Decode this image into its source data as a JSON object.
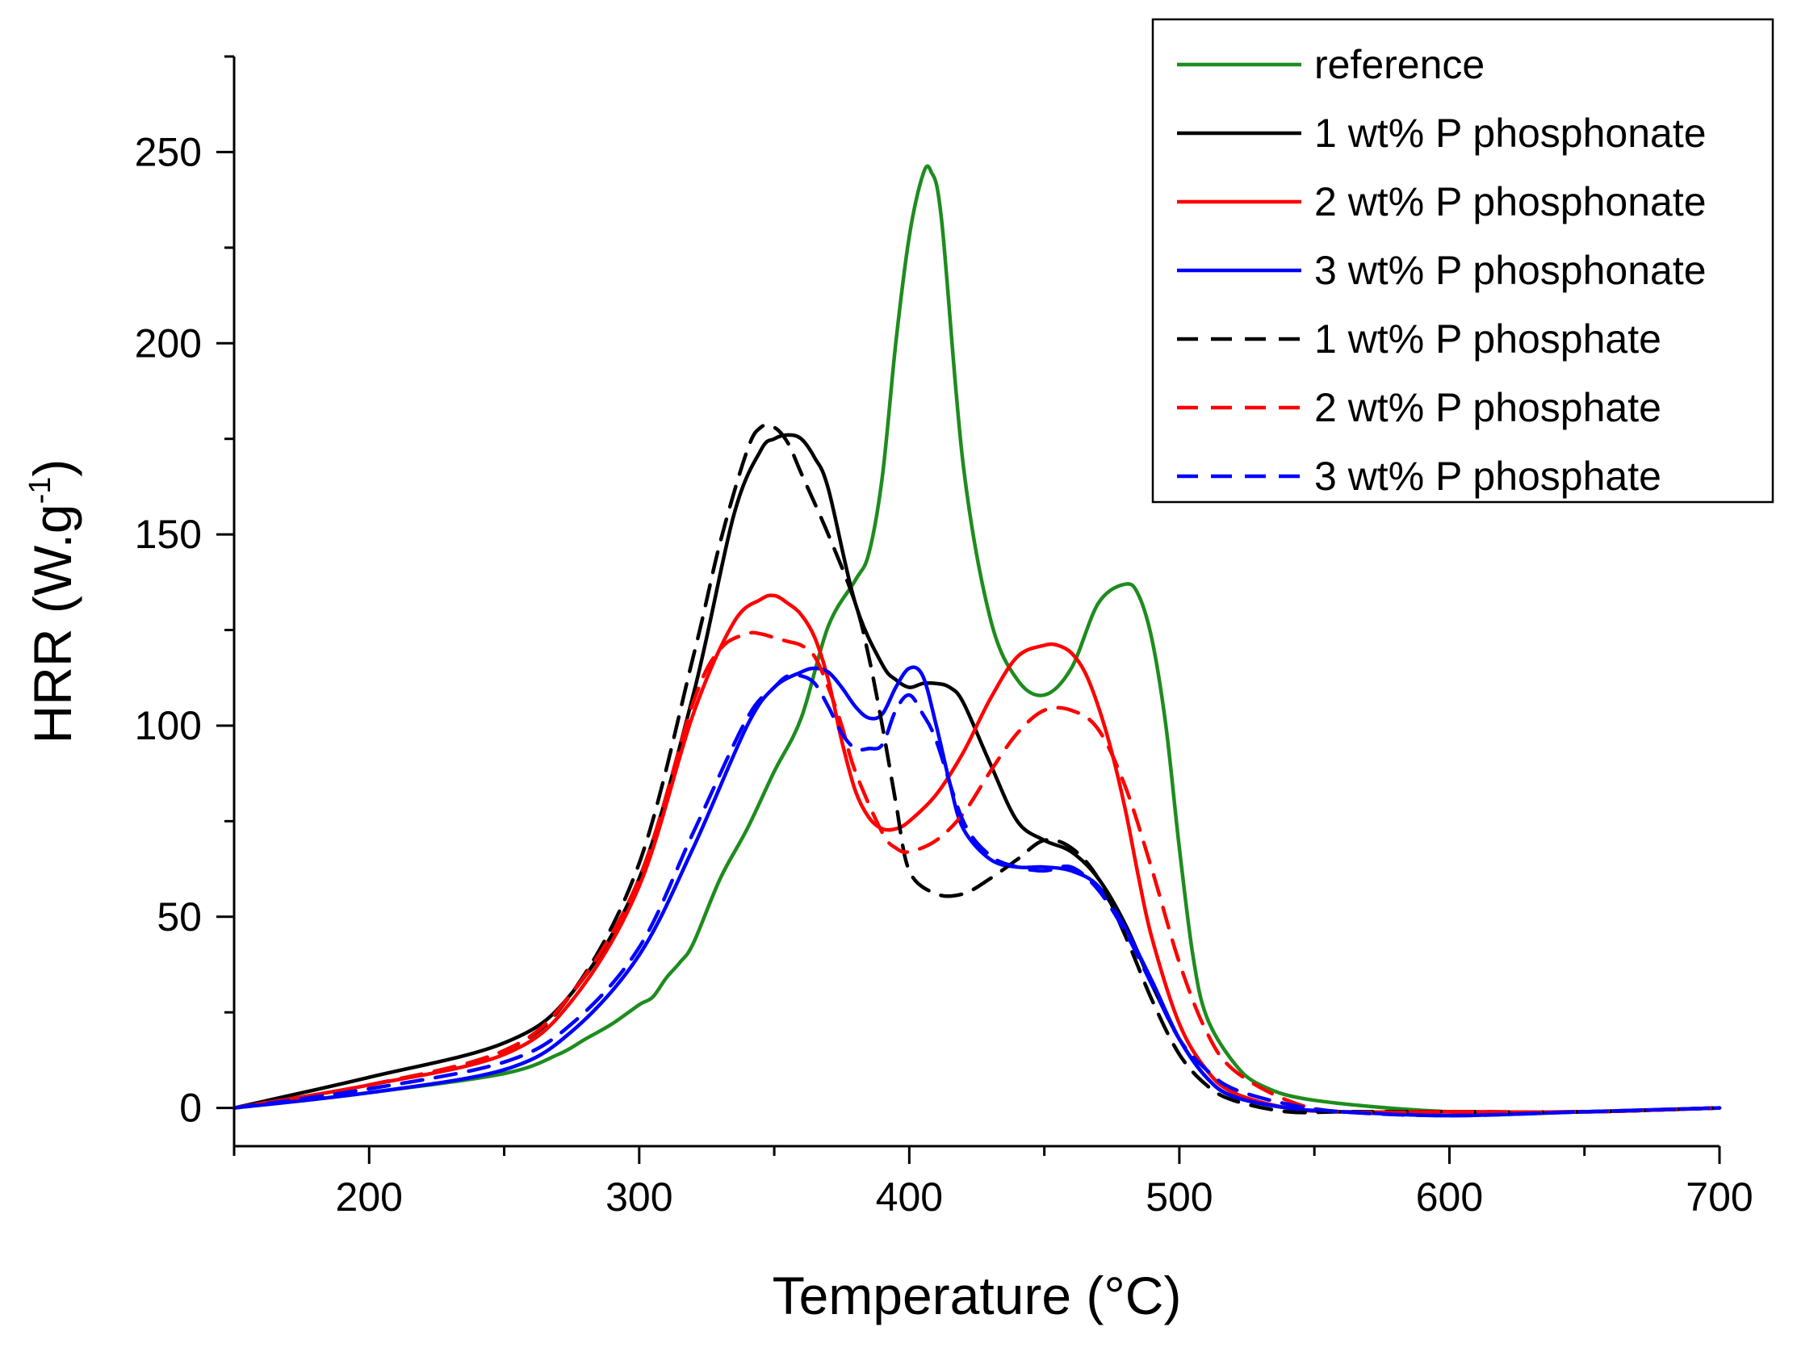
{
  "chart_data": {
    "type": "line",
    "xlabel": "Temperature (°C)",
    "ylabel_main": "HRR (W.g",
    "ylabel_sup": "-1",
    "ylabel_close": ")",
    "xlim": [
      150,
      700
    ],
    "ylim": [
      -10,
      275
    ],
    "xticks": [
      200,
      300,
      400,
      500,
      600,
      700
    ],
    "xtick_labels": [
      "200",
      "300",
      "400",
      "500",
      "600",
      "700"
    ],
    "yticks": [
      0,
      50,
      100,
      150,
      200,
      250
    ],
    "ytick_labels": [
      "0",
      "50",
      "100",
      "150",
      "200",
      "250"
    ],
    "legend_position": "top-right",
    "series": [
      {
        "name": "reference",
        "color": "#1e8c1e",
        "dash": "solid",
        "x": [
          150,
          200,
          250,
          270,
          280,
          290,
          300,
          305,
          310,
          315,
          320,
          330,
          340,
          350,
          360,
          370,
          380,
          385,
          390,
          395,
          400,
          405,
          408,
          412,
          420,
          430,
          440,
          450,
          460,
          470,
          480,
          485,
          490,
          495,
          500,
          505,
          510,
          520,
          530,
          550,
          600,
          650,
          700
        ],
        "y": [
          0,
          4,
          9,
          14,
          18,
          22,
          27,
          29,
          34,
          38,
          43,
          60,
          73,
          88,
          102,
          126,
          138,
          145,
          165,
          200,
          228,
          244,
          245,
          232,
          168,
          128,
          112,
          108,
          115,
          132,
          137,
          134,
          122,
          100,
          68,
          40,
          24,
          12,
          6,
          2,
          -1,
          -1,
          0
        ]
      },
      {
        "name": "1 wt% P phosphonate",
        "color": "#000000",
        "dash": "solid",
        "x": [
          150,
          200,
          250,
          275,
          300,
          320,
          335,
          345,
          350,
          355,
          360,
          365,
          370,
          380,
          390,
          395,
          400,
          405,
          410,
          415,
          420,
          430,
          440,
          450,
          460,
          470,
          480,
          490,
          500,
          510,
          520,
          540,
          560,
          600,
          650,
          700
        ],
        "y": [
          0,
          8,
          17,
          30,
          60,
          108,
          155,
          172,
          175,
          176,
          175,
          170,
          162,
          132,
          116,
          112,
          110,
          111,
          111,
          110,
          106,
          90,
          75,
          70,
          67,
          60,
          48,
          32,
          18,
          8,
          3,
          0,
          -1,
          -1,
          -1,
          0
        ]
      },
      {
        "name": "2 wt% P phosphonate",
        "color": "#ff0000",
        "dash": "solid",
        "x": [
          150,
          200,
          250,
          275,
          300,
          320,
          335,
          345,
          350,
          355,
          360,
          365,
          370,
          375,
          380,
          385,
          390,
          395,
          400,
          410,
          420,
          430,
          440,
          450,
          455,
          460,
          465,
          470,
          475,
          480,
          485,
          490,
          500,
          510,
          520,
          540,
          560,
          600,
          650,
          700
        ],
        "y": [
          0,
          6,
          14,
          28,
          58,
          103,
          127,
          133,
          134,
          132,
          129,
          123,
          112,
          96,
          83,
          76,
          73,
          73,
          75,
          82,
          93,
          107,
          118,
          121,
          121,
          119,
          114,
          105,
          93,
          78,
          60,
          44,
          22,
          10,
          4,
          0,
          -1,
          -1,
          -1,
          0
        ]
      },
      {
        "name": "3 wt% P phosphonate",
        "color": "#0000ff",
        "dash": "solid",
        "x": [
          150,
          200,
          250,
          275,
          300,
          320,
          340,
          350,
          360,
          365,
          370,
          375,
          380,
          385,
          390,
          395,
          400,
          405,
          410,
          415,
          420,
          430,
          440,
          450,
          460,
          470,
          480,
          490,
          500,
          510,
          520,
          540,
          560,
          600,
          650,
          700
        ],
        "y": [
          0,
          4,
          10,
          20,
          40,
          68,
          100,
          110,
          114,
          115,
          114,
          110,
          105,
          102,
          103,
          110,
          115,
          113,
          100,
          85,
          73,
          65,
          63,
          63,
          62,
          58,
          47,
          33,
          18,
          8,
          3,
          0,
          -1,
          -2,
          -1,
          0
        ]
      },
      {
        "name": "1 wt% P phosphate",
        "color": "#000000",
        "dash": "dashed",
        "x": [
          150,
          200,
          250,
          275,
          300,
          320,
          330,
          340,
          345,
          350,
          355,
          360,
          370,
          380,
          385,
          390,
          395,
          400,
          410,
          420,
          430,
          440,
          450,
          460,
          470,
          480,
          490,
          500,
          510,
          520,
          540,
          560,
          600,
          650,
          700
        ],
        "y": [
          0,
          6,
          15,
          30,
          64,
          118,
          148,
          172,
          178,
          178,
          174,
          166,
          150,
          132,
          118,
          100,
          80,
          62,
          56,
          56,
          60,
          65,
          70,
          68,
          60,
          45,
          28,
          14,
          6,
          2,
          -1,
          -1,
          -1,
          -1,
          0
        ]
      },
      {
        "name": "2 wt% P phosphate",
        "color": "#ff0000",
        "dash": "dashed",
        "x": [
          150,
          200,
          250,
          275,
          300,
          320,
          330,
          340,
          345,
          350,
          355,
          360,
          365,
          370,
          375,
          380,
          390,
          395,
          400,
          410,
          420,
          430,
          440,
          450,
          460,
          470,
          480,
          490,
          500,
          510,
          520,
          540,
          560,
          600,
          650,
          700
        ],
        "y": [
          0,
          6,
          15,
          30,
          60,
          106,
          120,
          124,
          124,
          123,
          122,
          121,
          118,
          110,
          100,
          88,
          72,
          68,
          67,
          70,
          77,
          88,
          98,
          104,
          104,
          99,
          84,
          62,
          38,
          20,
          10,
          2,
          -1,
          -1,
          -1,
          0
        ]
      },
      {
        "name": "3 wt% P phosphate",
        "color": "#0000ff",
        "dash": "dashed",
        "x": [
          150,
          200,
          250,
          275,
          300,
          320,
          340,
          350,
          355,
          360,
          365,
          370,
          375,
          380,
          385,
          390,
          395,
          400,
          405,
          410,
          420,
          430,
          440,
          450,
          460,
          470,
          480,
          490,
          500,
          510,
          520,
          540,
          560,
          600,
          650,
          700
        ],
        "y": [
          0,
          5,
          12,
          22,
          42,
          72,
          102,
          110,
          113,
          113,
          111,
          105,
          98,
          94,
          94,
          95,
          104,
          108,
          103,
          96,
          75,
          66,
          63,
          62,
          63,
          57,
          46,
          32,
          18,
          10,
          5,
          1,
          -1,
          -2,
          -1,
          0
        ]
      }
    ]
  }
}
